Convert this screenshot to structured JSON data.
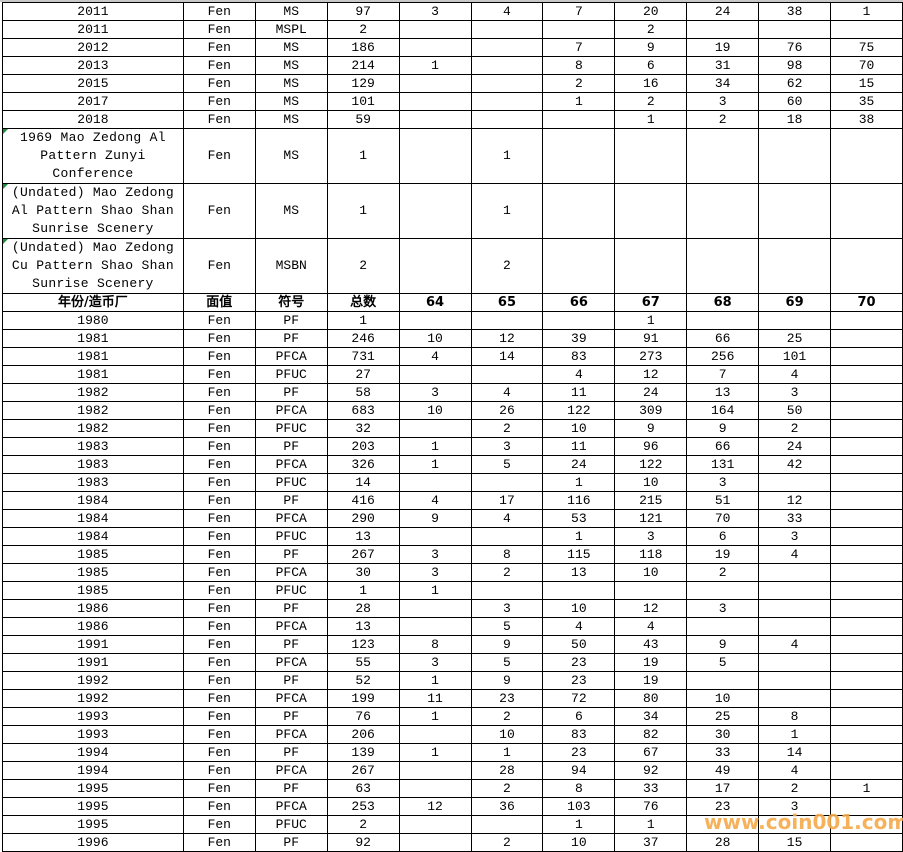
{
  "header": [
    "年份/造币厂",
    "面值",
    "符号",
    "总数",
    "64",
    "65",
    "66",
    "67",
    "68",
    "69",
    "70"
  ],
  "top_rows": [
    [
      "2011",
      "Fen",
      "MS",
      "97",
      "3",
      "4",
      "7",
      "20",
      "24",
      "38",
      "1"
    ],
    [
      "2011",
      "Fen",
      "MSPL",
      "2",
      "",
      "",
      "",
      "2",
      "",
      "",
      ""
    ],
    [
      "2012",
      "Fen",
      "MS",
      "186",
      "",
      "",
      "7",
      "9",
      "19",
      "76",
      "75"
    ],
    [
      "2013",
      "Fen",
      "MS",
      "214",
      "1",
      "",
      "8",
      "6",
      "31",
      "98",
      "70"
    ],
    [
      "2015",
      "Fen",
      "MS",
      "129",
      "",
      "",
      "2",
      "16",
      "34",
      "62",
      "15"
    ],
    [
      "2017",
      "Fen",
      "MS",
      "101",
      "",
      "",
      "1",
      "2",
      "3",
      "60",
      "35"
    ],
    [
      "2018",
      "Fen",
      "MS",
      "59",
      "",
      "",
      "",
      "1",
      "2",
      "18",
      "38"
    ]
  ],
  "tall_rows": [
    [
      "1969 Mao Zedong Al Pattern Zunyi Conference",
      "Fen",
      "MS",
      "1",
      "",
      "1",
      "",
      "",
      "",
      "",
      ""
    ],
    [
      "(Undated) Mao Zedong Al Pattern Shao Shan Sunrise Scenery",
      "Fen",
      "MS",
      "1",
      "",
      "1",
      "",
      "",
      "",
      "",
      ""
    ],
    [
      "(Undated) Mao Zedong Cu Pattern Shao Shan Sunrise Scenery",
      "Fen",
      "MSBN",
      "2",
      "",
      "2",
      "",
      "",
      "",
      "",
      ""
    ]
  ],
  "rows": [
    [
      "1980",
      "Fen",
      "PF",
      "1",
      "",
      "",
      "",
      "1",
      "",
      "",
      ""
    ],
    [
      "1981",
      "Fen",
      "PF",
      "246",
      "10",
      "12",
      "39",
      "91",
      "66",
      "25",
      ""
    ],
    [
      "1981",
      "Fen",
      "PFCA",
      "731",
      "4",
      "14",
      "83",
      "273",
      "256",
      "101",
      ""
    ],
    [
      "1981",
      "Fen",
      "PFUC",
      "27",
      "",
      "",
      "4",
      "12",
      "7",
      "4",
      ""
    ],
    [
      "1982",
      "Fen",
      "PF",
      "58",
      "3",
      "4",
      "11",
      "24",
      "13",
      "3",
      ""
    ],
    [
      "1982",
      "Fen",
      "PFCA",
      "683",
      "10",
      "26",
      "122",
      "309",
      "164",
      "50",
      ""
    ],
    [
      "1982",
      "Fen",
      "PFUC",
      "32",
      "",
      "2",
      "10",
      "9",
      "9",
      "2",
      ""
    ],
    [
      "1983",
      "Fen",
      "PF",
      "203",
      "1",
      "3",
      "11",
      "96",
      "66",
      "24",
      ""
    ],
    [
      "1983",
      "Fen",
      "PFCA",
      "326",
      "1",
      "5",
      "24",
      "122",
      "131",
      "42",
      ""
    ],
    [
      "1983",
      "Fen",
      "PFUC",
      "14",
      "",
      "",
      "1",
      "10",
      "3",
      "",
      ""
    ],
    [
      "1984",
      "Fen",
      "PF",
      "416",
      "4",
      "17",
      "116",
      "215",
      "51",
      "12",
      ""
    ],
    [
      "1984",
      "Fen",
      "PFCA",
      "290",
      "9",
      "4",
      "53",
      "121",
      "70",
      "33",
      ""
    ],
    [
      "1984",
      "Fen",
      "PFUC",
      "13",
      "",
      "",
      "1",
      "3",
      "6",
      "3",
      ""
    ],
    [
      "1985",
      "Fen",
      "PF",
      "267",
      "3",
      "8",
      "115",
      "118",
      "19",
      "4",
      ""
    ],
    [
      "1985",
      "Fen",
      "PFCA",
      "30",
      "3",
      "2",
      "13",
      "10",
      "2",
      "",
      ""
    ],
    [
      "1985",
      "Fen",
      "PFUC",
      "1",
      "1",
      "",
      "",
      "",
      "",
      "",
      ""
    ],
    [
      "1986",
      "Fen",
      "PF",
      "28",
      "",
      "3",
      "10",
      "12",
      "3",
      "",
      ""
    ],
    [
      "1986",
      "Fen",
      "PFCA",
      "13",
      "",
      "5",
      "4",
      "4",
      "",
      "",
      ""
    ],
    [
      "1991",
      "Fen",
      "PF",
      "123",
      "8",
      "9",
      "50",
      "43",
      "9",
      "4",
      ""
    ],
    [
      "1991",
      "Fen",
      "PFCA",
      "55",
      "3",
      "5",
      "23",
      "19",
      "5",
      "",
      ""
    ],
    [
      "1992",
      "Fen",
      "PF",
      "52",
      "1",
      "9",
      "23",
      "19",
      "",
      "",
      ""
    ],
    [
      "1992",
      "Fen",
      "PFCA",
      "199",
      "11",
      "23",
      "72",
      "80",
      "10",
      "",
      ""
    ],
    [
      "1993",
      "Fen",
      "PF",
      "76",
      "1",
      "2",
      "6",
      "34",
      "25",
      "8",
      ""
    ],
    [
      "1993",
      "Fen",
      "PFCA",
      "206",
      "",
      "10",
      "83",
      "82",
      "30",
      "1",
      ""
    ],
    [
      "1994",
      "Fen",
      "PF",
      "139",
      "1",
      "1",
      "23",
      "67",
      "33",
      "14",
      ""
    ],
    [
      "1994",
      "Fen",
      "PFCA",
      "267",
      "",
      "28",
      "94",
      "92",
      "49",
      "4",
      ""
    ],
    [
      "1995",
      "Fen",
      "PF",
      "63",
      "",
      "2",
      "8",
      "33",
      "17",
      "2",
      "1"
    ],
    [
      "1995",
      "Fen",
      "PFCA",
      "253",
      "12",
      "36",
      "103",
      "76",
      "23",
      "3",
      ""
    ],
    [
      "1995",
      "Fen",
      "PFUC",
      "2",
      "",
      "",
      "1",
      "1",
      "",
      "",
      ""
    ],
    [
      "1996",
      "Fen",
      "PF",
      "92",
      "",
      "2",
      "10",
      "37",
      "28",
      "15",
      ""
    ]
  ],
  "watermark": "www.coin001.com",
  "colors": {
    "watermark": "#f6a94a",
    "comment_marker": "#1e8a3c",
    "grid": "#000000"
  }
}
